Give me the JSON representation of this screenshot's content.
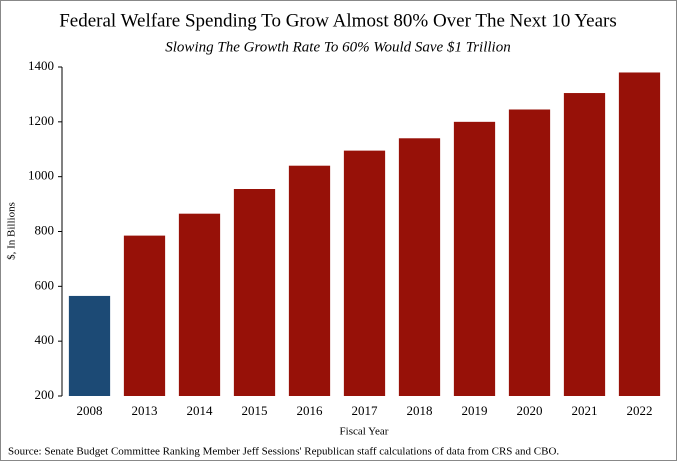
{
  "chart_data": {
    "type": "bar",
    "title": "Federal Welfare Spending To Grow Almost 80% Over The Next 10 Years",
    "subtitle": "Slowing The Growth Rate To 60% Would Save $1 Trillion",
    "y_label": "$, In Billions",
    "x_label": "Fiscal Year",
    "source": "Source: Senate Budget Committee Ranking Member Jeff Sessions' Republican staff calculations of data from CRS and CBO.",
    "categories": [
      "2008",
      "2013",
      "2014",
      "2015",
      "2016",
      "2017",
      "2018",
      "2019",
      "2020",
      "2021",
      "2022"
    ],
    "values": [
      565,
      785,
      865,
      955,
      1040,
      1095,
      1140,
      1200,
      1245,
      1305,
      1380
    ],
    "colors": [
      "#1c4a75",
      "#971108",
      "#971108",
      "#971108",
      "#971108",
      "#971108",
      "#971108",
      "#971108",
      "#971108",
      "#971108",
      "#971108"
    ],
    "ylim": [
      200,
      1400
    ],
    "yticks": [
      200,
      400,
      600,
      800,
      1000,
      1200,
      1400
    ],
    "grid": false
  }
}
